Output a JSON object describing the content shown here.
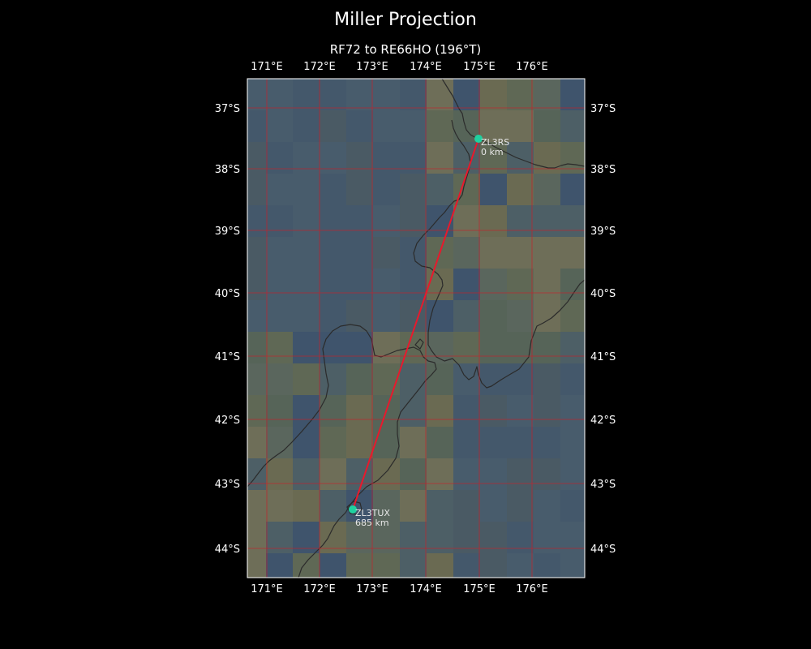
{
  "title": "Miller Projection",
  "subtitle": "RF72 to RE66HO (196°T)",
  "lon_ticks": [
    "171°E",
    "172°E",
    "173°E",
    "174°E",
    "175°E",
    "176°E"
  ],
  "lat_ticks": [
    "37°S",
    "38°S",
    "39°S",
    "40°S",
    "41°S",
    "42°S",
    "43°S",
    "44°S"
  ],
  "stations": [
    {
      "call": "ZL3RS",
      "distance": "0 km"
    },
    {
      "call": "ZL3TUX",
      "distance": "685 km"
    }
  ],
  "colors": {
    "background": "#000000",
    "path": "#e8192c",
    "station": "#1fd1a0",
    "grid": "#c8202a",
    "coast": "#2b2b2b"
  }
}
